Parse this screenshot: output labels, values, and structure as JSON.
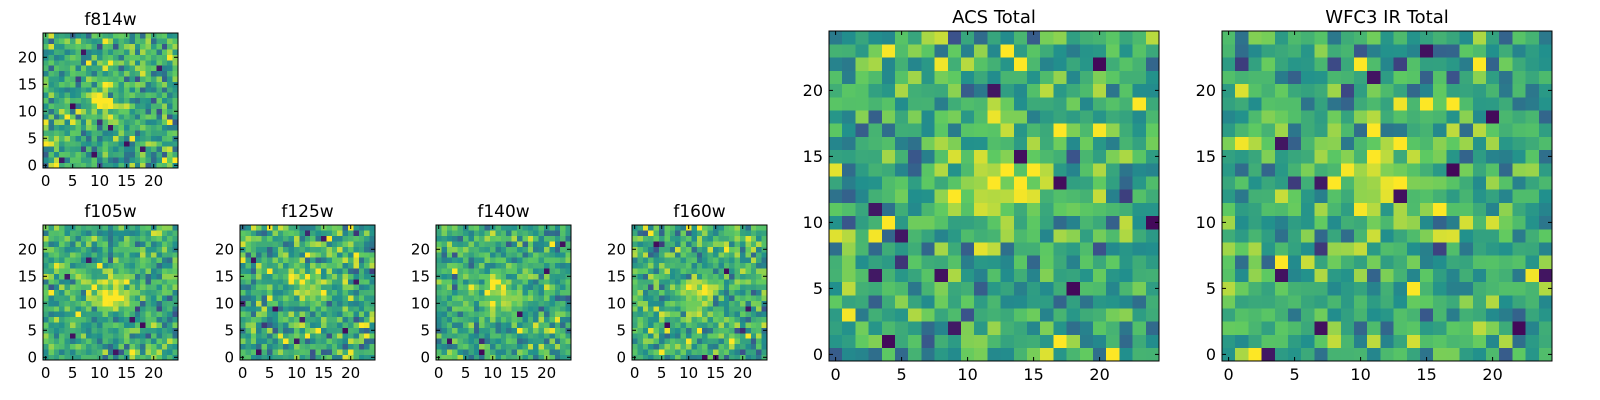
{
  "figure": {
    "description_colormap": "viridis",
    "colormap_stops": [
      "#440154",
      "#3b528b",
      "#21908d",
      "#5dc962",
      "#fde725"
    ]
  },
  "chart_data": [
    {
      "type": "heatmap",
      "title": "f814w",
      "grid_size": 25,
      "xlim": [
        -0.5,
        24.5
      ],
      "ylim": [
        -0.5,
        24.5
      ],
      "xticks": [
        0,
        5,
        10,
        15,
        20
      ],
      "yticks": [
        0,
        5,
        10,
        15,
        20
      ],
      "seed": 814,
      "noise_sigma": 0.16,
      "blob": {
        "x": 11,
        "y": 12,
        "amplitude": 0.3,
        "sigma": 2.2
      },
      "dark_pixels": [
        [
          3,
          1
        ],
        [
          9,
          2
        ],
        [
          5,
          11
        ],
        [
          15,
          4
        ],
        [
          21,
          18
        ],
        [
          12,
          7
        ],
        [
          18,
          3
        ],
        [
          7,
          21
        ]
      ]
    },
    {
      "type": "heatmap",
      "title": "f105w",
      "grid_size": 25,
      "xlim": [
        -0.5,
        24.5
      ],
      "ylim": [
        -0.5,
        24.5
      ],
      "xticks": [
        0,
        5,
        10,
        15,
        20
      ],
      "yticks": [
        0,
        5,
        10,
        15,
        20
      ],
      "seed": 105,
      "noise_sigma": 0.14,
      "blob": {
        "x": 12,
        "y": 12,
        "amplitude": 0.34,
        "sigma": 2.6
      },
      "dark_pixels": [
        [
          4,
          15
        ],
        [
          8,
          18
        ],
        [
          16,
          7
        ],
        [
          18,
          6
        ],
        [
          5,
          4
        ],
        [
          13,
          1
        ]
      ]
    },
    {
      "type": "heatmap",
      "title": "f125w",
      "grid_size": 25,
      "xlim": [
        -0.5,
        24.5
      ],
      "ylim": [
        -0.5,
        24.5
      ],
      "xticks": [
        0,
        5,
        10,
        15,
        20
      ],
      "yticks": [
        0,
        5,
        10,
        15,
        20
      ],
      "seed": 125,
      "noise_sigma": 0.17,
      "blob": {
        "x": 12,
        "y": 13,
        "amplitude": 0.28,
        "sigma": 2.2
      },
      "dark_pixels": [
        [
          15,
          22
        ],
        [
          2,
          18
        ],
        [
          10,
          3
        ],
        [
          19,
          5
        ],
        [
          6,
          9
        ],
        [
          21,
          14
        ],
        [
          3,
          1
        ]
      ]
    },
    {
      "type": "heatmap",
      "title": "f140w",
      "grid_size": 25,
      "xlim": [
        -0.5,
        24.5
      ],
      "ylim": [
        -0.5,
        24.5
      ],
      "xticks": [
        0,
        5,
        10,
        15,
        20
      ],
      "yticks": [
        0,
        5,
        10,
        15,
        20
      ],
      "seed": 140,
      "noise_sigma": 0.14,
      "blob": {
        "x": 11,
        "y": 12,
        "amplitude": 0.3,
        "sigma": 2.5
      },
      "dark_pixels": [
        [
          20,
          16
        ],
        [
          2,
          3
        ],
        [
          15,
          8
        ],
        [
          8,
          1
        ],
        [
          23,
          21
        ]
      ]
    },
    {
      "type": "heatmap",
      "title": "f160w",
      "grid_size": 25,
      "xlim": [
        -0.5,
        24.5
      ],
      "ylim": [
        -0.5,
        24.5
      ],
      "xticks": [
        0,
        5,
        10,
        15,
        20
      ],
      "yticks": [
        0,
        5,
        10,
        15,
        20
      ],
      "seed": 160,
      "noise_sigma": 0.15,
      "blob": {
        "x": 12,
        "y": 12,
        "amplitude": 0.32,
        "sigma": 2.4
      },
      "dark_pixels": [
        [
          4,
          21
        ],
        [
          17,
          16
        ],
        [
          13,
          0
        ],
        [
          15,
          0
        ],
        [
          6,
          6
        ],
        [
          21,
          9
        ]
      ]
    },
    {
      "type": "heatmap",
      "title": "ACS Total",
      "grid_size": 25,
      "xlim": [
        -0.5,
        24.5
      ],
      "ylim": [
        -0.5,
        24.5
      ],
      "xticks": [
        0,
        5,
        10,
        15,
        20
      ],
      "yticks": [
        0,
        5,
        10,
        15,
        20
      ],
      "seed": 2001,
      "noise_sigma": 0.16,
      "blob": {
        "x": 12,
        "y": 13,
        "amplitude": 0.32,
        "sigma": 2.4
      },
      "dark_pixels": [
        [
          3,
          11
        ],
        [
          3,
          6
        ],
        [
          5,
          9
        ],
        [
          4,
          1
        ],
        [
          9,
          2
        ],
        [
          8,
          6
        ],
        [
          17,
          13
        ],
        [
          24,
          10
        ],
        [
          18,
          5
        ],
        [
          14,
          15
        ],
        [
          12,
          20
        ],
        [
          20,
          22
        ]
      ]
    },
    {
      "type": "heatmap",
      "title": "WFC3 IR Total",
      "grid_size": 25,
      "xlim": [
        -0.5,
        24.5
      ],
      "ylim": [
        -0.5,
        24.5
      ],
      "xticks": [
        0,
        5,
        10,
        15,
        20
      ],
      "yticks": [
        0,
        5,
        10,
        15,
        20
      ],
      "seed": 3001,
      "noise_sigma": 0.15,
      "blob": {
        "x": 12,
        "y": 13,
        "amplitude": 0.3,
        "sigma": 2.5
      },
      "dark_pixels": [
        [
          4,
          16
        ],
        [
          7,
          13
        ],
        [
          4,
          6
        ],
        [
          7,
          2
        ],
        [
          3,
          0
        ],
        [
          13,
          12
        ],
        [
          17,
          14
        ],
        [
          22,
          2
        ],
        [
          24,
          6
        ],
        [
          20,
          18
        ],
        [
          11,
          21
        ],
        [
          15,
          23
        ]
      ]
    }
  ]
}
